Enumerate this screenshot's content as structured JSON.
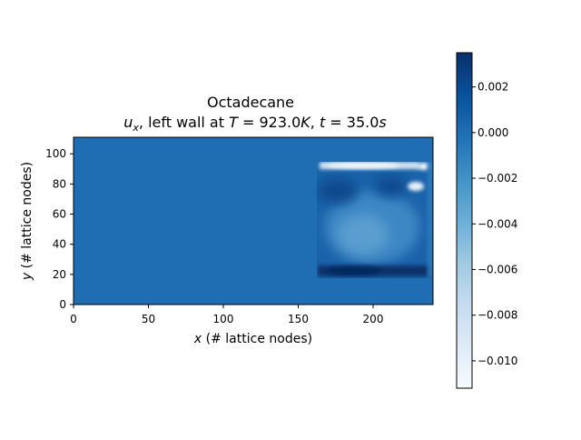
{
  "chart_data": {
    "type": "heatmap",
    "title_line1": "Octadecane",
    "title_line2": {
      "var": "u",
      "sub": "x",
      "text1": ", left wall at ",
      "T_sym": "T",
      "eq1": " = 923.0",
      "T_unit": "K",
      "text2": ", ",
      "t_sym": "t",
      "eq2": " = 35.0",
      "t_unit": "s"
    },
    "xlabel": {
      "sym": "x",
      "rest": " (# lattice nodes)"
    },
    "ylabel": {
      "sym": "y",
      "rest": " (# lattice nodes)"
    },
    "xlim": [
      0,
      240
    ],
    "ylim": [
      0,
      111
    ],
    "xticks": [
      0,
      50,
      100,
      150,
      200
    ],
    "yticks": [
      0,
      20,
      40,
      60,
      80,
      100
    ],
    "colormap": "Blues",
    "colorbar": {
      "range": [
        -0.0112,
        0.0035
      ],
      "ticks": [
        0.002,
        0.0,
        -0.002,
        -0.004,
        -0.006,
        -0.008,
        -0.01
      ],
      "tick_labels": [
        "0.002",
        "0.000",
        "−0.002",
        "−0.004",
        "−0.006",
        "−0.008",
        "−0.010"
      ]
    },
    "field": {
      "background_value": 0.0,
      "melt_region": {
        "x": [
          163,
          240
        ],
        "y": [
          17,
          95
        ]
      },
      "features": [
        {
          "kind": "top-jet",
          "x": [
            164,
            230
          ],
          "y": [
            91,
            95
          ],
          "value": -0.01
        },
        {
          "kind": "bright-spot",
          "x": 228,
          "y": 92,
          "value": -0.011
        },
        {
          "kind": "bright-spot",
          "x": 228,
          "y": 78,
          "value": -0.01
        },
        {
          "kind": "bottom-return",
          "x": [
            165,
            238
          ],
          "y": [
            18,
            24
          ],
          "value": 0.003
        },
        {
          "kind": "central-cell",
          "x": [
            170,
            235
          ],
          "y": [
            30,
            80
          ],
          "value": -0.0035
        }
      ]
    }
  },
  "colors": {
    "cmap_stops": [
      "#f7fbff",
      "#deebf7",
      "#c6dbef",
      "#9ecae1",
      "#6baed6",
      "#4292c6",
      "#2171b5",
      "#08519c",
      "#08306b"
    ]
  }
}
